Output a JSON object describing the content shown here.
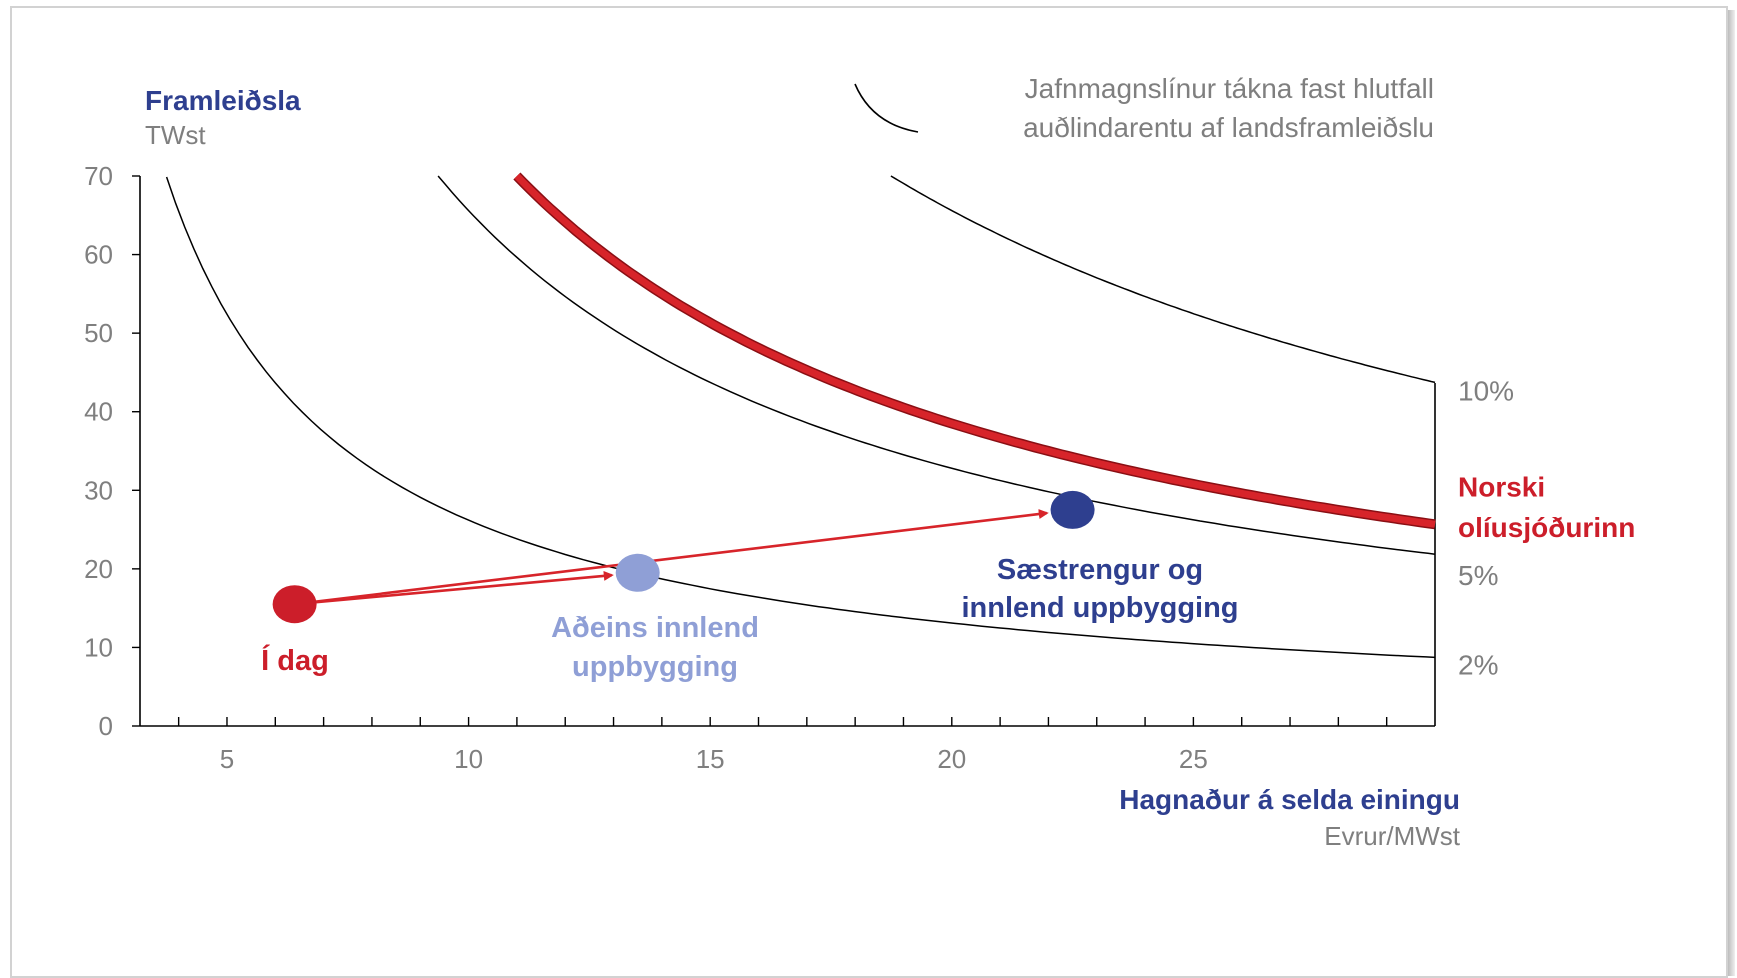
{
  "chart_data": {
    "type": "line",
    "y_title": "Framleiðsla",
    "y_unit": "TWst",
    "x_title": "Hagnaður á selda einingu",
    "x_unit": "Evrur/MWst",
    "xlim": [
      3.2,
      30
    ],
    "ylim": [
      0,
      70
    ],
    "x_ticks": [
      5,
      10,
      15,
      20,
      25
    ],
    "y_ticks": [
      0,
      10,
      20,
      30,
      40,
      50,
      60,
      70
    ],
    "legend_text": [
      "Jafnmagnslínur tákna fast hlutfall",
      "auðlindarentu af landsframleiðslu"
    ],
    "legend_position": "top-right",
    "grid": false,
    "colors": {
      "axis": "#000000",
      "curve": "#000000",
      "highlight": "#d7242a",
      "idag": "#cc1e2a",
      "innlend": "#8f9fd6",
      "saestrengur": "#2e3f8f",
      "dark_text": "#2e3f8f",
      "grey_text": "#7f7f7f"
    },
    "series": [
      {
        "label": "2%",
        "k": 262,
        "x_start": 3.75,
        "x_end": 30,
        "style": "thin"
      },
      {
        "label": "5%",
        "k": 656,
        "x_start": 9.37,
        "x_end": 30,
        "style": "thin"
      },
      {
        "label": "Norski olíusjóðurinn",
        "k": 770,
        "x_start": 11.0,
        "x_end": 30,
        "style": "highlight"
      },
      {
        "label": "10%",
        "k": 1312,
        "x_start": 18.74,
        "x_end": 30,
        "style": "thin"
      }
    ],
    "right_labels": [
      {
        "text": "10%",
        "y": 42.7,
        "kind": "grey"
      },
      {
        "text": "Norski",
        "y": 30.5,
        "kind": "red"
      },
      {
        "text": "olíusjóðurinn",
        "y": 25.3,
        "kind": "red"
      },
      {
        "text": "5%",
        "y": 19.2,
        "kind": "grey"
      },
      {
        "text": "2%",
        "y": 7.8,
        "kind": "grey"
      }
    ],
    "points": [
      {
        "label": "Í dag",
        "x": 6.4,
        "y": 15.5,
        "color_key": "idag"
      },
      {
        "label_lines": [
          "Aðeins innlend",
          "uppbygging"
        ],
        "x": 13.5,
        "y": 19.5,
        "color_key": "innlend"
      },
      {
        "label_lines": [
          "Sæstrengur og",
          "innlend uppbygging"
        ],
        "x": 22.5,
        "y": 27.5,
        "color_key": "saestrengur"
      }
    ],
    "arrows": [
      {
        "from": 0,
        "to": 1
      },
      {
        "from": 0,
        "to": 2
      }
    ]
  }
}
